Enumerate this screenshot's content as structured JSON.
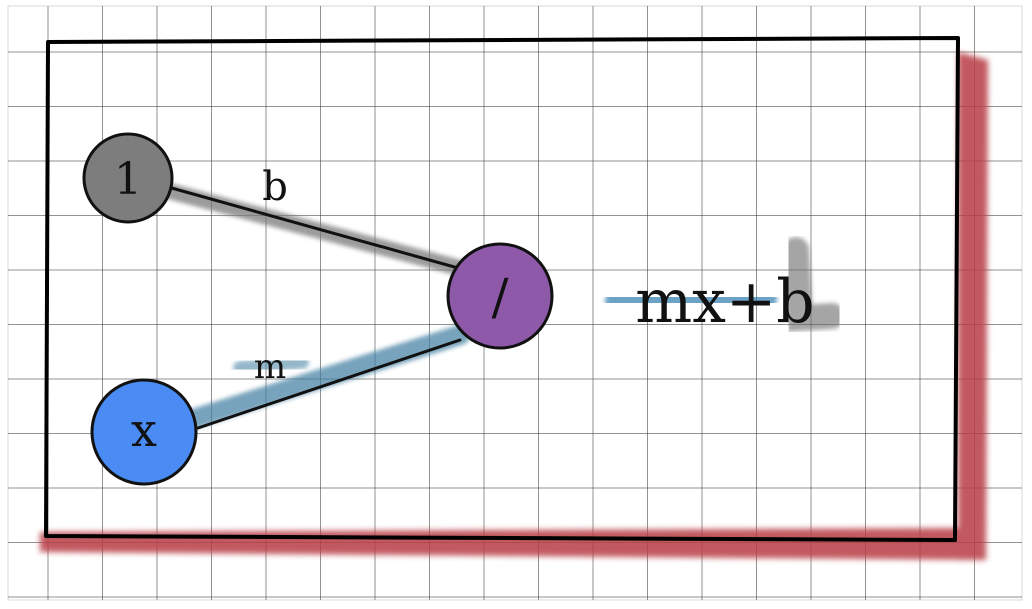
{
  "colors": {
    "grid_line": "#3a3a3a",
    "border": "#000000",
    "border_shadow": "#b83c44",
    "node_one": "#7d7d7d",
    "node_x": "#4a8cf3",
    "node_output": "#8d59a8",
    "edge_b_highlight": "#7a7a7a",
    "edge_m_highlight": "#3f7da0",
    "formula_highlight_blue": "#3b84b4",
    "formula_highlight_gray": "#6a6a6a"
  },
  "diagram": {
    "nodes": {
      "bias": {
        "label": "1"
      },
      "input": {
        "label": "x"
      },
      "output": {
        "label": "/"
      }
    },
    "edges": {
      "bias_to_output": {
        "label": "b"
      },
      "input_to_output": {
        "label": "m"
      }
    },
    "formula": "mx+b"
  }
}
